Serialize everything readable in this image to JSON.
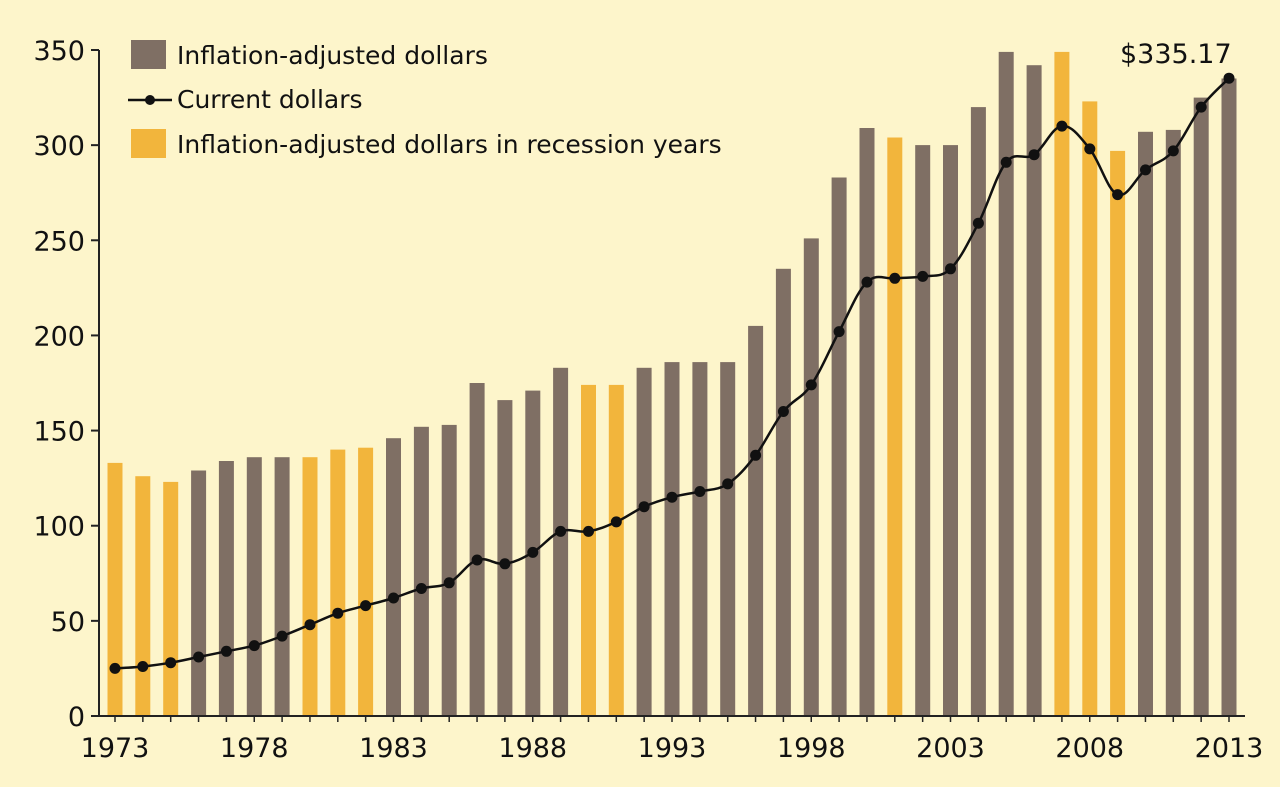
{
  "chart_data": {
    "type": "bar",
    "title": "",
    "xlabel": "",
    "ylabel": "",
    "ylim": [
      0,
      350
    ],
    "y_ticks": [
      0,
      50,
      100,
      150,
      200,
      250,
      300,
      350
    ],
    "x_tick_labels": [
      "1973",
      "1978",
      "1983",
      "1988",
      "1993",
      "1998",
      "2003",
      "2008",
      "2013"
    ],
    "categories": [
      1973,
      1974,
      1975,
      1976,
      1977,
      1978,
      1979,
      1980,
      1981,
      1982,
      1983,
      1984,
      1985,
      1986,
      1987,
      1988,
      1989,
      1990,
      1991,
      1992,
      1993,
      1994,
      1995,
      1996,
      1997,
      1998,
      1999,
      2000,
      2001,
      2002,
      2003,
      2004,
      2005,
      2006,
      2007,
      2008,
      2009,
      2010,
      2011,
      2012,
      2013
    ],
    "series": [
      {
        "name": "Inflation-adjusted dollars",
        "kind": "bar",
        "values": [
          133,
          126,
          123,
          129,
          134,
          136,
          136,
          136,
          140,
          141,
          146,
          152,
          153,
          175,
          166,
          171,
          183,
          174,
          174,
          183,
          186,
          186,
          186,
          205,
          235,
          251,
          283,
          309,
          304,
          300,
          300,
          320,
          349,
          342,
          349,
          323,
          297,
          307,
          308,
          325,
          335
        ]
      },
      {
        "name": "Current dollars",
        "kind": "line",
        "values": [
          25,
          26,
          28,
          31,
          34,
          37,
          42,
          48,
          54,
          58,
          62,
          67,
          70,
          82,
          80,
          86,
          97,
          97,
          102,
          110,
          115,
          118,
          122,
          137,
          160,
          174,
          202,
          228,
          230,
          231,
          235,
          259,
          291,
          295,
          310,
          298,
          274,
          287,
          297,
          320,
          335.17
        ]
      }
    ],
    "recession_years": [
      1973,
      1974,
      1975,
      1980,
      1981,
      1982,
      1990,
      1991,
      2001,
      2007,
      2008,
      2009
    ],
    "legend": [
      {
        "label": "Inflation-adjusted dollars",
        "kind": "bar",
        "color": "#7f6f64"
      },
      {
        "label": "Current dollars",
        "kind": "line",
        "color": "#111111"
      },
      {
        "label": "Inflation-adjusted dollars in recession years",
        "kind": "bar",
        "color": "#f2b53c"
      }
    ],
    "legend_position": "top-left",
    "annotation": "$335.17",
    "grid": false
  },
  "colors": {
    "background": "#fdf5cb",
    "bar_normal": "#7f6f64",
    "bar_recession": "#f2b53c",
    "line": "#111111",
    "axis": "#222222"
  }
}
